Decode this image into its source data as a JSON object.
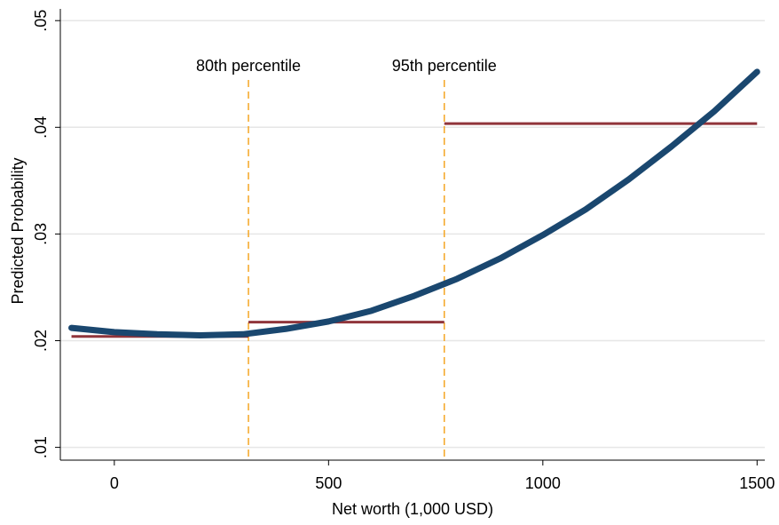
{
  "chart_data": {
    "type": "line",
    "x_label": "Net worth (1,000 USD)",
    "y_label": "Predicted Probability",
    "xlim": [
      -126,
      1518
    ],
    "ylim": [
      0.0088,
      0.0511
    ],
    "xticks": [
      0,
      500,
      1000,
      1500
    ],
    "yticks": [
      {
        "value": 0.01,
        "label": ".01"
      },
      {
        "value": 0.02,
        "label": ".02"
      },
      {
        "value": 0.03,
        "label": ".03"
      },
      {
        "value": 0.04,
        "label": ".04"
      },
      {
        "value": 0.05,
        "label": ".05"
      }
    ],
    "grid": true,
    "series": [
      {
        "color": "#1a476f",
        "x": [
          -100,
          0,
          100,
          200,
          300,
          400,
          500,
          600,
          700,
          800,
          900,
          1000,
          1100,
          1200,
          1300,
          1400,
          1500
        ],
        "values": [
          0.0212,
          0.0208,
          0.0206,
          0.0205,
          0.0206,
          0.0211,
          0.0218,
          0.0228,
          0.0242,
          0.0258,
          0.0277,
          0.0299,
          0.0323,
          0.0351,
          0.0382,
          0.0415,
          0.0452
        ]
      }
    ],
    "segments": [
      {
        "x": [
          -100,
          313
        ],
        "y": 0.0204,
        "color": "#90353b"
      },
      {
        "x": [
          313,
          770
        ],
        "y": 0.02174,
        "color": "#90353b"
      },
      {
        "x": [
          770,
          1500
        ],
        "y": 0.04035,
        "color": "#90353b"
      }
    ],
    "vlines": [
      {
        "x": 313,
        "label": "80th percentile",
        "color": "#f5a623"
      },
      {
        "x": 770,
        "label": "95th percentile",
        "color": "#f5a623"
      }
    ]
  }
}
